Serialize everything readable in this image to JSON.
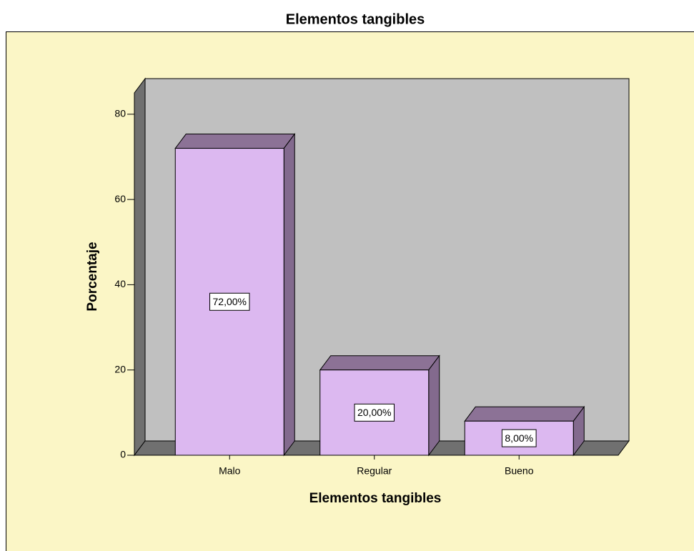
{
  "chart_data": {
    "type": "bar3d",
    "title": "Elementos tangibles",
    "x_label": "Elementos tangibles",
    "y_label": "Porcentaje",
    "categories": [
      "Malo",
      "Regular",
      "Bueno"
    ],
    "values": [
      72,
      20,
      8
    ],
    "value_labels": [
      "72,00%",
      "20,00%",
      "8,00%"
    ],
    "color": "#dcb8f0",
    "ylim": [
      0,
      85
    ],
    "yticks": [
      0,
      20,
      40,
      60,
      80
    ]
  }
}
